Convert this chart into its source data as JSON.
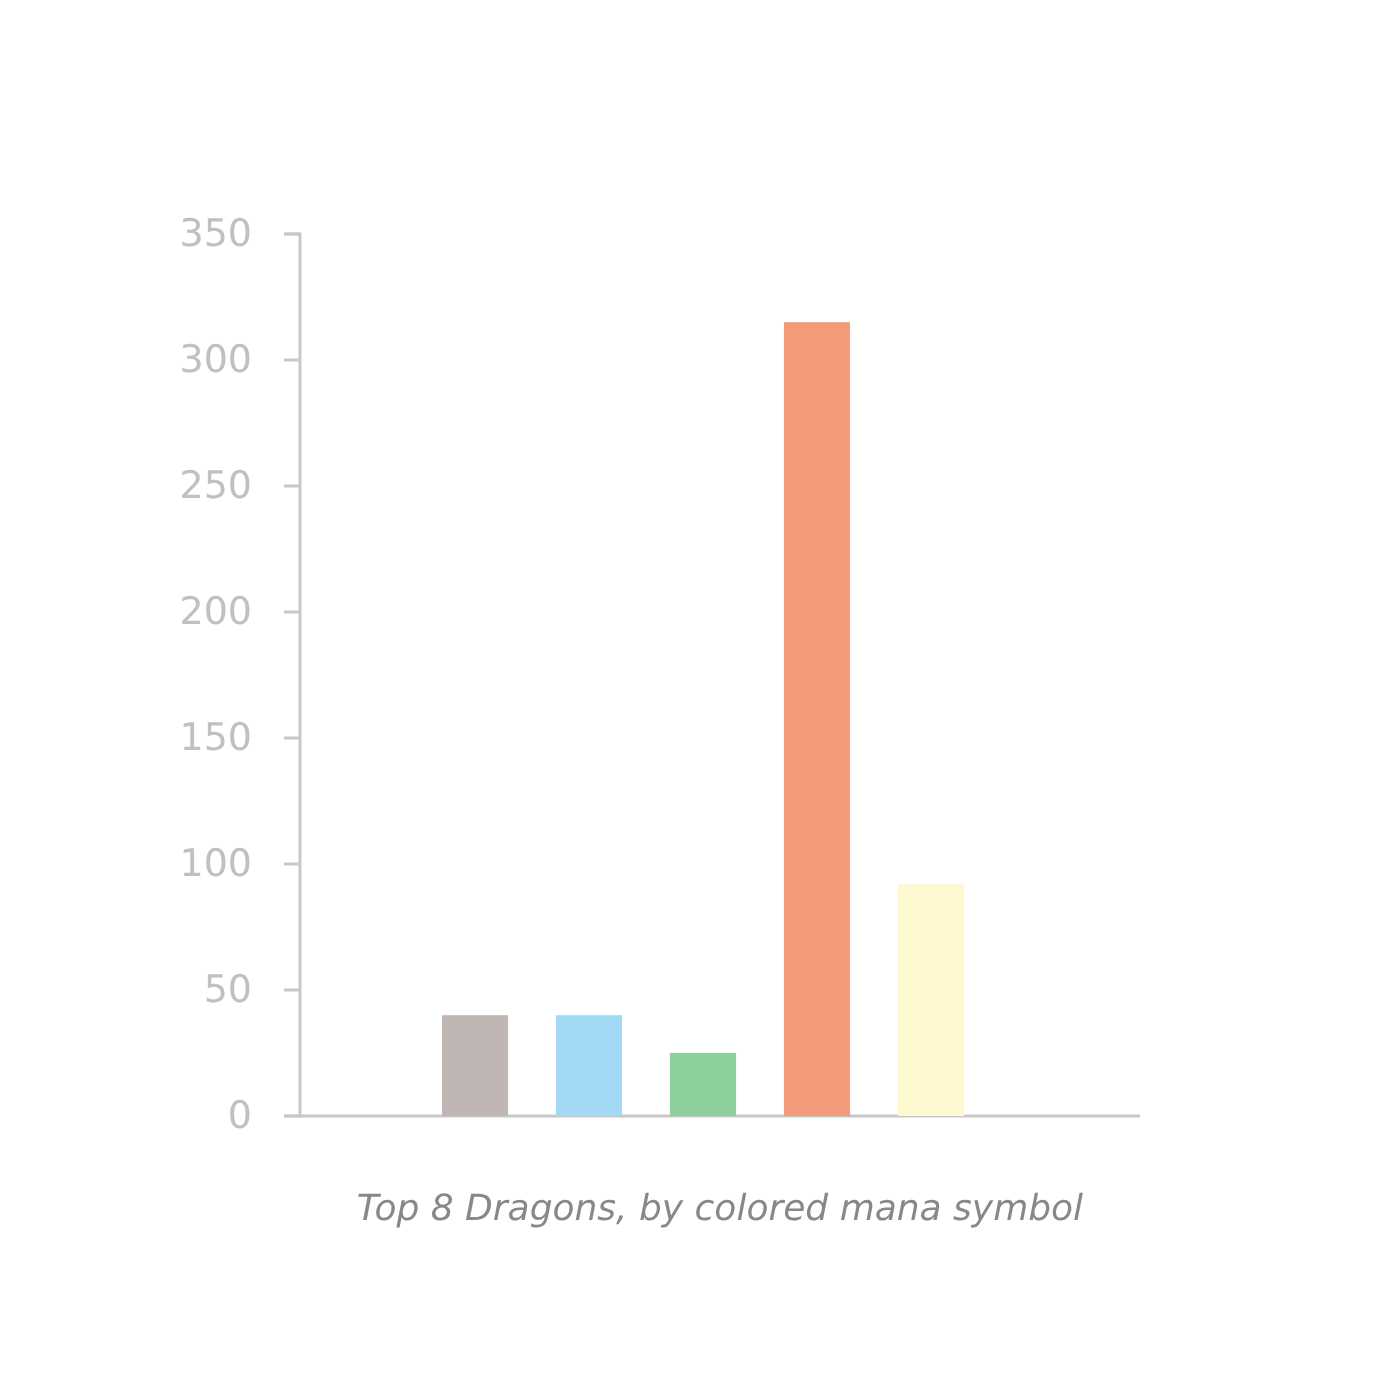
{
  "chart_data": {
    "type": "bar",
    "xlabel": "Top 8 Dragons, by colored mana symbol",
    "categories": [
      null,
      null,
      null,
      null,
      null,
      null,
      null
    ],
    "values": [
      null,
      40,
      40,
      25,
      315,
      92,
      null
    ],
    "colors": [
      null,
      "#bfb6b3",
      "#a3d9f5",
      "#8ecf9e",
      "#f29b7b",
      "#fdf8cf",
      null
    ],
    "ylim": [
      0,
      350
    ],
    "yticks": [
      0,
      50,
      100,
      150,
      200,
      250,
      300,
      350
    ],
    "grid": false
  }
}
